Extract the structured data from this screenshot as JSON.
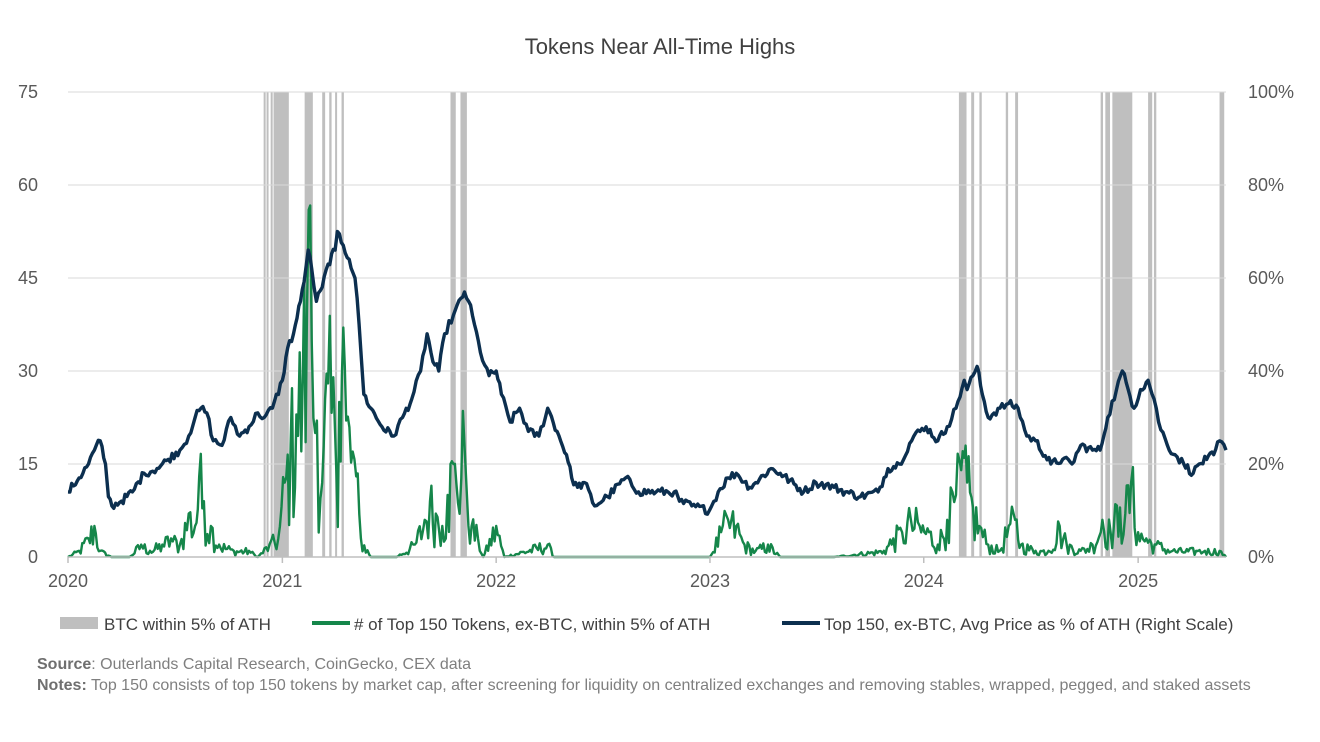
{
  "chart_data": {
    "type": "line",
    "title": "Tokens Near All-Time Highs",
    "x_range": [
      "2020-01-01",
      "2025-05-31"
    ],
    "x_ticks": [
      "2020",
      "2021",
      "2022",
      "2023",
      "2024",
      "2025"
    ],
    "y_left": {
      "range": [
        0,
        75
      ],
      "ticks": [
        "0",
        "15",
        "30",
        "45",
        "60",
        "75"
      ]
    },
    "y_right": {
      "range": [
        0,
        100
      ],
      "ticks": [
        "0%",
        "20%",
        "40%",
        "60%",
        "80%",
        "100%"
      ]
    },
    "grid": true,
    "legend_position": "bottom",
    "series": [
      {
        "name": "BTC within 5% of ATH",
        "kind": "shaded_periods",
        "color": "#bfbfbf",
        "periods": [
          [
            "2020-11-30",
            "2020-12-02"
          ],
          [
            "2020-12-05",
            "2020-12-08"
          ],
          [
            "2020-12-12",
            "2020-12-15"
          ],
          [
            "2020-12-17",
            "2021-01-12"
          ],
          [
            "2021-02-08",
            "2021-02-22"
          ],
          [
            "2021-03-10",
            "2021-03-15"
          ],
          [
            "2021-03-22",
            "2021-03-26"
          ],
          [
            "2021-04-01",
            "2021-04-04"
          ],
          [
            "2021-04-12",
            "2021-04-16"
          ],
          [
            "2021-10-15",
            "2021-10-24"
          ],
          [
            "2021-11-01",
            "2021-11-12"
          ],
          [
            "2024-03-01",
            "2024-03-14"
          ],
          [
            "2024-03-22",
            "2024-03-27"
          ],
          [
            "2024-04-05",
            "2024-04-09"
          ],
          [
            "2024-05-20",
            "2024-05-24"
          ],
          [
            "2024-06-05",
            "2024-06-10"
          ],
          [
            "2024-10-29",
            "2024-11-02"
          ],
          [
            "2024-11-06",
            "2024-11-14"
          ],
          [
            "2024-11-18",
            "2024-12-22"
          ],
          [
            "2025-01-18",
            "2025-01-25"
          ],
          [
            "2025-01-28",
            "2025-02-01"
          ],
          [
            "2025-05-20",
            "2025-05-28"
          ]
        ]
      },
      {
        "name": "# of Top 150 Tokens, ex-BTC, within 5% of ATH",
        "axis": "left",
        "color": "#15864a",
        "points": [
          [
            "2020-01-01",
            0
          ],
          [
            "2020-01-20",
            1
          ],
          [
            "2020-02-05",
            3
          ],
          [
            "2020-02-15",
            5
          ],
          [
            "2020-02-25",
            1
          ],
          [
            "2020-03-15",
            0
          ],
          [
            "2020-04-15",
            0
          ],
          [
            "2020-05-05",
            2
          ],
          [
            "2020-05-20",
            1
          ],
          [
            "2020-06-10",
            2
          ],
          [
            "2020-06-25",
            3
          ],
          [
            "2020-07-10",
            2
          ],
          [
            "2020-07-25",
            7
          ],
          [
            "2020-08-05",
            5
          ],
          [
            "2020-08-12",
            13
          ],
          [
            "2020-08-20",
            9
          ],
          [
            "2020-09-01",
            5
          ],
          [
            "2020-09-15",
            2
          ],
          [
            "2020-10-10",
            1
          ],
          [
            "2020-11-05",
            1
          ],
          [
            "2020-11-20",
            0
          ],
          [
            "2020-12-10",
            2
          ],
          [
            "2020-12-25",
            3
          ],
          [
            "2021-01-05",
            12
          ],
          [
            "2021-01-15",
            18
          ],
          [
            "2021-01-25",
            23
          ],
          [
            "2021-02-05",
            30
          ],
          [
            "2021-02-12",
            40
          ],
          [
            "2021-02-15",
            56
          ],
          [
            "2021-02-20",
            35
          ],
          [
            "2021-03-01",
            22
          ],
          [
            "2021-03-10",
            12
          ],
          [
            "2021-03-20",
            28
          ],
          [
            "2021-04-01",
            20
          ],
          [
            "2021-04-08",
            25
          ],
          [
            "2021-04-15",
            37
          ],
          [
            "2021-04-20",
            22
          ],
          [
            "2021-05-01",
            17
          ],
          [
            "2021-05-07",
            13
          ],
          [
            "2021-05-15",
            3
          ],
          [
            "2021-06-01",
            0
          ],
          [
            "2021-07-15",
            0
          ],
          [
            "2021-08-15",
            2
          ],
          [
            "2021-09-01",
            6
          ],
          [
            "2021-09-10",
            9
          ],
          [
            "2021-09-20",
            7
          ],
          [
            "2021-10-01",
            5
          ],
          [
            "2021-10-10",
            10
          ],
          [
            "2021-10-20",
            15
          ],
          [
            "2021-10-25",
            12
          ],
          [
            "2021-11-08",
            18
          ],
          [
            "2021-11-12",
            10
          ],
          [
            "2021-11-20",
            5
          ],
          [
            "2021-12-01",
            3
          ],
          [
            "2021-12-10",
            0
          ],
          [
            "2022-01-01",
            5
          ],
          [
            "2022-01-15",
            0
          ],
          [
            "2022-03-30",
            2
          ],
          [
            "2022-04-10",
            0
          ],
          [
            "2023-01-01",
            0
          ],
          [
            "2023-01-20",
            4
          ],
          [
            "2023-02-01",
            6
          ],
          [
            "2023-02-15",
            5
          ],
          [
            "2023-03-01",
            2
          ],
          [
            "2023-03-20",
            1
          ],
          [
            "2023-04-10",
            2
          ],
          [
            "2023-05-01",
            0
          ],
          [
            "2023-08-01",
            0
          ],
          [
            "2023-10-25",
            1
          ],
          [
            "2023-11-10",
            3
          ],
          [
            "2023-11-25",
            4
          ],
          [
            "2023-12-10",
            6
          ],
          [
            "2023-12-25",
            5
          ],
          [
            "2024-01-10",
            4
          ],
          [
            "2024-01-25",
            2
          ],
          [
            "2024-02-10",
            6
          ],
          [
            "2024-02-25",
            10
          ],
          [
            "2024-03-05",
            14
          ],
          [
            "2024-03-10",
            16
          ],
          [
            "2024-03-15",
            12
          ],
          [
            "2024-03-25",
            8
          ],
          [
            "2024-04-05",
            5
          ],
          [
            "2024-04-20",
            2
          ],
          [
            "2024-05-10",
            1
          ],
          [
            "2024-05-25",
            5
          ],
          [
            "2024-06-05",
            6
          ],
          [
            "2024-06-15",
            2
          ],
          [
            "2024-07-10",
            1
          ],
          [
            "2024-08-01",
            1
          ],
          [
            "2024-08-20",
            5
          ],
          [
            "2024-09-01",
            2
          ],
          [
            "2024-09-25",
            1
          ],
          [
            "2024-10-15",
            2
          ],
          [
            "2024-11-01",
            6
          ],
          [
            "2024-11-15",
            4
          ],
          [
            "2024-12-01",
            8
          ],
          [
            "2024-12-10",
            7
          ],
          [
            "2024-12-20",
            12
          ],
          [
            "2025-01-01",
            4
          ],
          [
            "2025-01-15",
            3
          ],
          [
            "2025-02-01",
            2
          ],
          [
            "2025-03-01",
            1
          ],
          [
            "2025-04-10",
            1
          ],
          [
            "2025-04-25",
            1
          ],
          [
            "2025-05-20",
            1
          ],
          [
            "2025-05-31",
            0
          ]
        ]
      },
      {
        "name": "Top 150, ex-BTC, Avg Price as % of ATH (Right Scale)",
        "axis": "right",
        "color": "#0c2f4f",
        "points": [
          [
            "2020-01-01",
            14
          ],
          [
            "2020-01-20",
            17
          ],
          [
            "2020-02-05",
            20
          ],
          [
            "2020-02-15",
            23
          ],
          [
            "2020-02-25",
            25
          ],
          [
            "2020-03-05",
            20
          ],
          [
            "2020-03-10",
            13
          ],
          [
            "2020-03-16",
            11
          ],
          [
            "2020-04-01",
            12
          ],
          [
            "2020-04-20",
            14
          ],
          [
            "2020-05-10",
            18
          ],
          [
            "2020-06-01",
            19
          ],
          [
            "2020-06-20",
            21
          ],
          [
            "2020-07-10",
            23
          ],
          [
            "2020-07-25",
            26
          ],
          [
            "2020-08-05",
            30
          ],
          [
            "2020-08-15",
            32
          ],
          [
            "2020-08-25",
            31
          ],
          [
            "2020-09-05",
            25
          ],
          [
            "2020-09-20",
            24
          ],
          [
            "2020-10-05",
            30
          ],
          [
            "2020-10-20",
            26
          ],
          [
            "2020-11-05",
            28
          ],
          [
            "2020-11-20",
            31
          ],
          [
            "2020-12-01",
            30
          ],
          [
            "2020-12-15",
            32
          ],
          [
            "2021-01-01",
            38
          ],
          [
            "2021-01-10",
            45
          ],
          [
            "2021-01-20",
            48
          ],
          [
            "2021-02-01",
            55
          ],
          [
            "2021-02-10",
            62
          ],
          [
            "2021-02-14",
            66
          ],
          [
            "2021-02-20",
            62
          ],
          [
            "2021-02-28",
            55
          ],
          [
            "2021-03-10",
            58
          ],
          [
            "2021-03-20",
            63
          ],
          [
            "2021-04-01",
            66
          ],
          [
            "2021-04-05",
            70
          ],
          [
            "2021-04-15",
            67
          ],
          [
            "2021-04-25",
            64
          ],
          [
            "2021-05-05",
            60
          ],
          [
            "2021-05-12",
            50
          ],
          [
            "2021-05-20",
            35
          ],
          [
            "2021-06-01",
            32
          ],
          [
            "2021-06-20",
            28
          ],
          [
            "2021-07-10",
            26
          ],
          [
            "2021-07-25",
            30
          ],
          [
            "2021-08-10",
            34
          ],
          [
            "2021-08-25",
            40
          ],
          [
            "2021-09-05",
            48
          ],
          [
            "2021-09-15",
            42
          ],
          [
            "2021-09-25",
            40
          ],
          [
            "2021-10-05",
            48
          ],
          [
            "2021-10-20",
            52
          ],
          [
            "2021-11-08",
            57
          ],
          [
            "2021-11-15",
            55
          ],
          [
            "2021-11-25",
            50
          ],
          [
            "2021-12-05",
            44
          ],
          [
            "2021-12-20",
            39
          ],
          [
            "2022-01-01",
            40
          ],
          [
            "2022-01-10",
            35
          ],
          [
            "2022-01-25",
            29
          ],
          [
            "2022-02-10",
            32
          ],
          [
            "2022-02-25",
            27
          ],
          [
            "2022-03-15",
            26
          ],
          [
            "2022-03-30",
            32
          ],
          [
            "2022-04-15",
            27
          ],
          [
            "2022-05-01",
            22
          ],
          [
            "2022-05-10",
            17
          ],
          [
            "2022-05-20",
            15
          ],
          [
            "2022-06-01",
            16
          ],
          [
            "2022-06-18",
            11
          ],
          [
            "2022-07-10",
            13
          ],
          [
            "2022-08-10",
            17
          ],
          [
            "2022-09-01",
            14
          ],
          [
            "2022-10-01",
            14
          ],
          [
            "2022-11-01",
            14
          ],
          [
            "2022-11-10",
            12
          ],
          [
            "2022-12-01",
            11
          ],
          [
            "2022-12-31",
            10
          ],
          [
            "2023-01-15",
            14
          ],
          [
            "2023-02-01",
            17
          ],
          [
            "2023-02-15",
            18
          ],
          [
            "2023-03-10",
            15
          ],
          [
            "2023-03-20",
            16
          ],
          [
            "2023-04-15",
            19
          ],
          [
            "2023-05-01",
            18
          ],
          [
            "2023-06-10",
            14
          ],
          [
            "2023-07-01",
            16
          ],
          [
            "2023-08-01",
            15
          ],
          [
            "2023-08-20",
            14
          ],
          [
            "2023-09-15",
            13
          ],
          [
            "2023-10-15",
            14
          ],
          [
            "2023-11-01",
            19
          ],
          [
            "2023-11-20",
            20
          ],
          [
            "2023-12-15",
            26
          ],
          [
            "2024-01-05",
            28
          ],
          [
            "2024-01-25",
            25
          ],
          [
            "2024-02-10",
            28
          ],
          [
            "2024-02-25",
            32
          ],
          [
            "2024-03-10",
            38
          ],
          [
            "2024-03-15",
            36
          ],
          [
            "2024-03-25",
            39
          ],
          [
            "2024-04-01",
            41
          ],
          [
            "2024-04-10",
            35
          ],
          [
            "2024-04-20",
            30
          ],
          [
            "2024-05-10",
            32
          ],
          [
            "2024-05-25",
            33
          ],
          [
            "2024-06-10",
            32
          ],
          [
            "2024-06-25",
            26
          ],
          [
            "2024-07-10",
            25
          ],
          [
            "2024-08-05",
            20
          ],
          [
            "2024-08-25",
            21
          ],
          [
            "2024-09-10",
            20
          ],
          [
            "2024-09-25",
            24
          ],
          [
            "2024-10-15",
            23
          ],
          [
            "2024-10-28",
            23
          ],
          [
            "2024-11-10",
            30
          ],
          [
            "2024-11-25",
            36
          ],
          [
            "2024-12-05",
            40
          ],
          [
            "2024-12-15",
            36
          ],
          [
            "2024-12-25",
            32
          ],
          [
            "2025-01-05",
            36
          ],
          [
            "2025-01-18",
            38
          ],
          [
            "2025-01-28",
            34
          ],
          [
            "2025-02-05",
            29
          ],
          [
            "2025-02-20",
            24
          ],
          [
            "2025-03-05",
            22
          ],
          [
            "2025-03-20",
            20
          ],
          [
            "2025-04-05",
            18
          ],
          [
            "2025-04-15",
            20
          ],
          [
            "2025-04-28",
            21
          ],
          [
            "2025-05-10",
            22
          ],
          [
            "2025-05-20",
            25
          ],
          [
            "2025-05-31",
            23
          ]
        ]
      }
    ]
  },
  "footer": {
    "source_label": "Source",
    "source_text": ": Outerlands Capital Research, CoinGecko, CEX data",
    "notes_label": "Notes:",
    "notes_text": " Top 150 consists of top 150 tokens by market cap, after screening for liquidity on centralized exchanges and removing stables, wrapped, pegged, and staked assets"
  }
}
